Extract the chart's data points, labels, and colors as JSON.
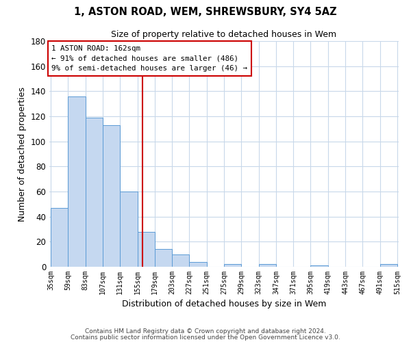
{
  "title": "1, ASTON ROAD, WEM, SHREWSBURY, SY4 5AZ",
  "subtitle": "Size of property relative to detached houses in Wem",
  "xlabel": "Distribution of detached houses by size in Wem",
  "ylabel": "Number of detached properties",
  "bar_color": "#c5d8f0",
  "bar_edge_color": "#5b9bd5",
  "bins_left": [
    35,
    59,
    83,
    107,
    131,
    155,
    179,
    203,
    227,
    251,
    275,
    299,
    323,
    347,
    371,
    395,
    419,
    443,
    467,
    491
  ],
  "bin_width": 24,
  "bar_heights": [
    47,
    136,
    119,
    113,
    60,
    28,
    14,
    10,
    4,
    0,
    2,
    0,
    2,
    0,
    0,
    1,
    0,
    0,
    0,
    2
  ],
  "tick_labels": [
    "35sqm",
    "59sqm",
    "83sqm",
    "107sqm",
    "131sqm",
    "155sqm",
    "179sqm",
    "203sqm",
    "227sqm",
    "251sqm",
    "275sqm",
    "299sqm",
    "323sqm",
    "347sqm",
    "371sqm",
    "395sqm",
    "419sqm",
    "443sqm",
    "467sqm",
    "491sqm",
    "515sqm"
  ],
  "ylim": [
    0,
    180
  ],
  "yticks": [
    0,
    20,
    40,
    60,
    80,
    100,
    120,
    140,
    160,
    180
  ],
  "property_value": 162,
  "vline_color": "#cc0000",
  "annotation_box_color": "#cc0000",
  "annotation_title": "1 ASTON ROAD: 162sqm",
  "annotation_line1": "← 91% of detached houses are smaller (486)",
  "annotation_line2": "9% of semi-detached houses are larger (46) →",
  "footer1": "Contains HM Land Registry data © Crown copyright and database right 2024.",
  "footer2": "Contains public sector information licensed under the Open Government Licence v3.0.",
  "background_color": "#ffffff",
  "grid_color": "#c8d8ea",
  "fig_width": 6.0,
  "fig_height": 5.0,
  "dpi": 100
}
